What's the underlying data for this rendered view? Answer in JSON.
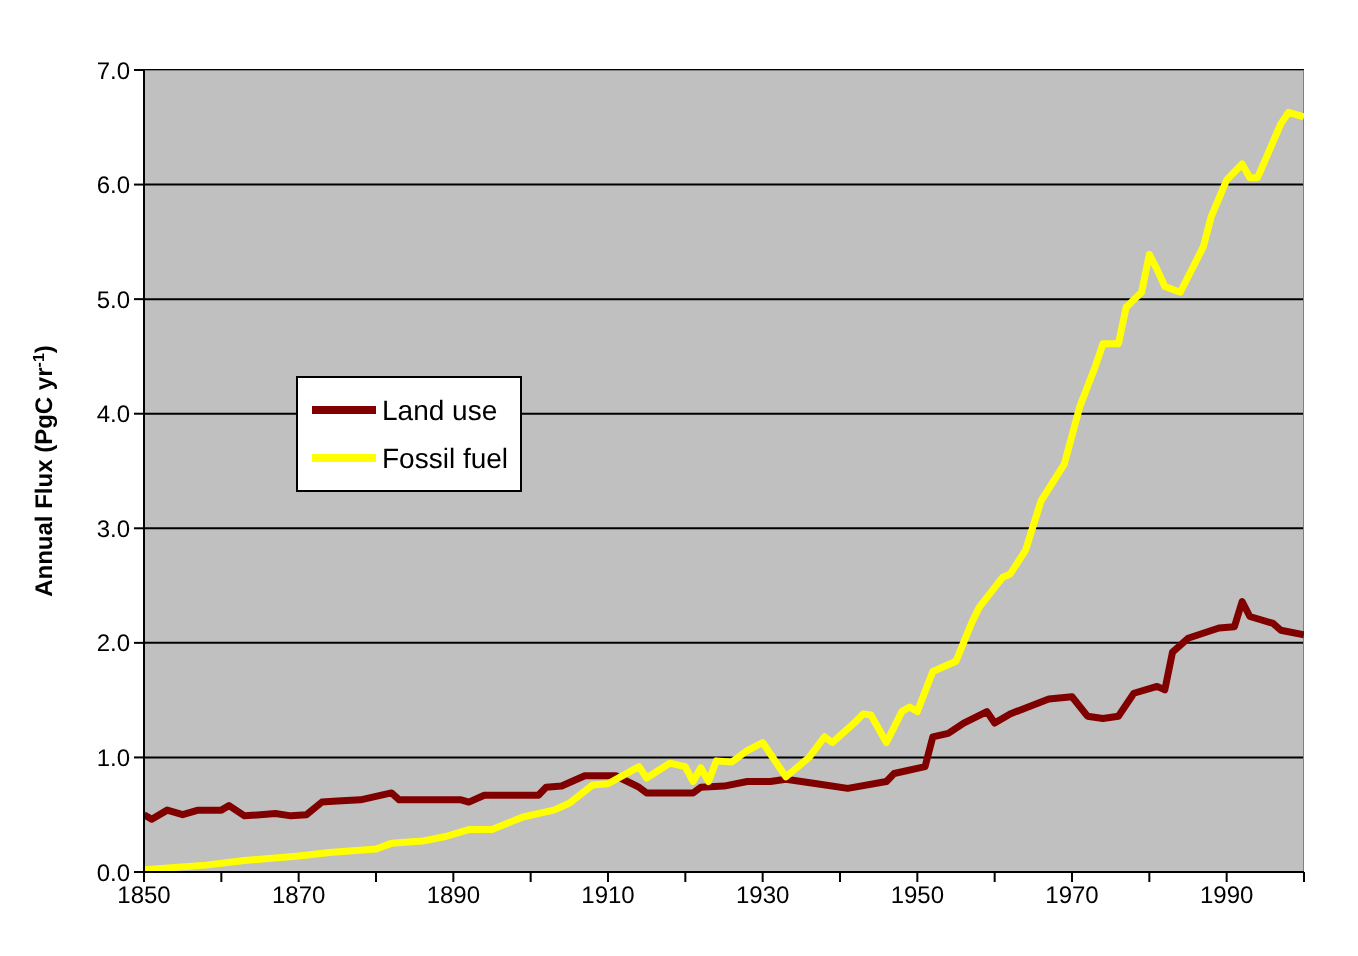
{
  "chart_data": {
    "type": "line",
    "ylabel": "Annual Flux (PgC yr$^{-1}$)",
    "xlim": [
      1850,
      2000
    ],
    "xticks": [
      1850,
      {
        "value": 1860,
        "label": null
      },
      1870,
      {
        "value": 1880,
        "label": null
      },
      1890,
      {
        "value": 1900,
        "label": null
      },
      1910,
      {
        "value": 1920,
        "label": null
      },
      1930,
      {
        "value": 1940,
        "label": null
      },
      1950,
      {
        "value": 1960,
        "label": null
      },
      1970,
      {
        "value": 1980,
        "label": null
      },
      1990,
      {
        "value": 2000,
        "label": null
      }
    ],
    "ylim": [
      0,
      7
    ],
    "yticks": [
      {
        "value": 0,
        "label": "0.0"
      },
      {
        "value": 1,
        "label": "1.0"
      },
      {
        "value": 2,
        "label": "2.0"
      },
      {
        "value": 3,
        "label": "3.0"
      },
      {
        "value": 4,
        "label": "4.0"
      },
      {
        "value": 5,
        "label": "5.0"
      },
      {
        "value": 6,
        "label": "6.0"
      },
      {
        "value": 7,
        "label": "7.0"
      }
    ],
    "grid": "y",
    "legend": "left",
    "marker": "none",
    "line_style": "solid",
    "series": [
      {
        "name": "Land use",
        "color": "#800000",
        "x": [
          1850,
          1851,
          1853,
          1855,
          1857,
          1860,
          1861,
          1863,
          1867,
          1869,
          1871,
          1873,
          1875,
          1878,
          1882,
          1883,
          1891,
          1892,
          1894,
          1901,
          1902,
          1904,
          1907,
          1911,
          1914,
          1915,
          1921,
          1922,
          1925,
          1928,
          1931,
          1933,
          1937,
          1941,
          1946,
          1947,
          1951,
          1952,
          1954,
          1956,
          1959,
          1960,
          1962,
          1967,
          1970,
          1972,
          1974,
          1976,
          1978,
          1981,
          1982,
          1983,
          1985,
          1989,
          1991,
          1992,
          1993,
          1996,
          1997,
          2000
        ],
        "values": [
          0.5,
          0.46,
          0.54,
          0.5,
          0.54,
          0.54,
          0.58,
          0.49,
          0.51,
          0.49,
          0.5,
          0.61,
          0.62,
          0.63,
          0.69,
          0.63,
          0.63,
          0.61,
          0.67,
          0.67,
          0.74,
          0.75,
          0.84,
          0.84,
          0.74,
          0.69,
          0.69,
          0.74,
          0.75,
          0.79,
          0.79,
          0.81,
          0.77,
          0.73,
          0.79,
          0.86,
          0.92,
          1.18,
          1.21,
          1.3,
          1.4,
          1.3,
          1.38,
          1.51,
          1.53,
          1.36,
          1.34,
          1.36,
          1.56,
          1.62,
          1.59,
          1.92,
          2.04,
          2.13,
          2.14,
          2.36,
          2.23,
          2.17,
          2.11,
          2.07
        ]
      },
      {
        "name": "Fossil fuel",
        "color": "#ffff00",
        "x": [
          1850,
          1858,
          1863,
          1870,
          1874,
          1880,
          1882,
          1886,
          1889,
          1892,
          1895,
          1899,
          1903,
          1905,
          1908,
          1910,
          1914,
          1915,
          1918,
          1920,
          1921,
          1922,
          1923,
          1924,
          1926,
          1928,
          1930,
          1933,
          1936,
          1938,
          1939,
          1942,
          1943,
          1944,
          1946,
          1948,
          1949,
          1950,
          1952,
          1955,
          1957,
          1958,
          1961,
          1962,
          1964,
          1966,
          1969,
          1971,
          1973,
          1974,
          1976,
          1977,
          1979,
          1980,
          1981,
          1982,
          1984,
          1987,
          1988,
          1990,
          1992,
          1993,
          1994,
          1997,
          1998,
          2000
        ],
        "values": [
          0.02,
          0.06,
          0.1,
          0.14,
          0.17,
          0.2,
          0.25,
          0.27,
          0.31,
          0.37,
          0.37,
          0.48,
          0.54,
          0.6,
          0.76,
          0.77,
          0.92,
          0.82,
          0.95,
          0.92,
          0.79,
          0.91,
          0.79,
          0.97,
          0.96,
          1.06,
          1.13,
          0.83,
          1.0,
          1.18,
          1.13,
          1.31,
          1.38,
          1.37,
          1.13,
          1.4,
          1.44,
          1.4,
          1.75,
          1.84,
          2.17,
          2.31,
          2.57,
          2.6,
          2.81,
          3.24,
          3.56,
          4.06,
          4.41,
          4.61,
          4.61,
          4.93,
          5.06,
          5.39,
          5.26,
          5.11,
          5.06,
          5.46,
          5.72,
          6.04,
          6.18,
          6.06,
          6.06,
          6.53,
          6.63,
          6.59
        ]
      }
    ]
  }
}
